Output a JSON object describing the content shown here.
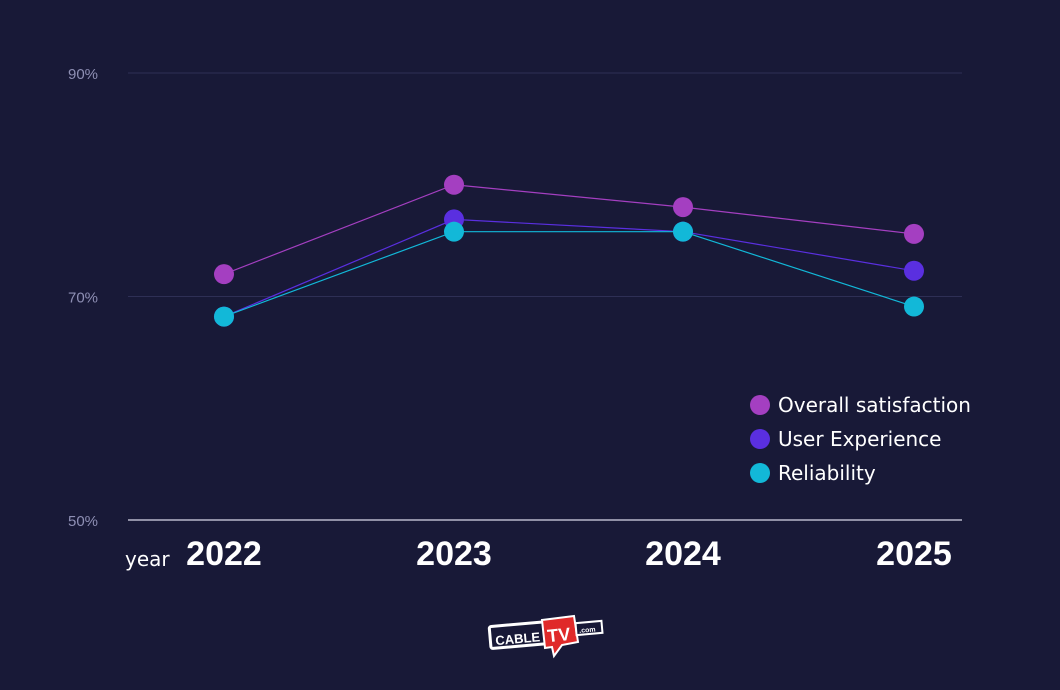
{
  "chart_data": {
    "type": "line",
    "title": "",
    "xlabel": "year",
    "ylabel": "",
    "categories": [
      "2022",
      "2023",
      "2024",
      "2025"
    ],
    "ylim": [
      50,
      90
    ],
    "yticks": [
      50,
      70,
      90
    ],
    "ytick_labels": [
      "50%",
      "70%",
      "90%"
    ],
    "grid": true,
    "legend_position": "bottom-right",
    "series": [
      {
        "name": "Overall satisfaction",
        "color": "#a43fc1",
        "values": [
          72.0,
          80.0,
          78.0,
          75.6
        ]
      },
      {
        "name": "User Experience",
        "color": "#5a2fe0",
        "values": [
          68.2,
          76.9,
          75.8,
          72.3
        ]
      },
      {
        "name": "Reliability",
        "color": "#12b8d8",
        "values": [
          68.2,
          75.8,
          75.8,
          69.1
        ]
      }
    ]
  },
  "logo": {
    "text": "CABLE TV .com",
    "brand_color": "#e02a2a"
  },
  "colors": {
    "background": "#181937",
    "gridline": "#2e2f55",
    "axis": "#d8d8e8"
  }
}
